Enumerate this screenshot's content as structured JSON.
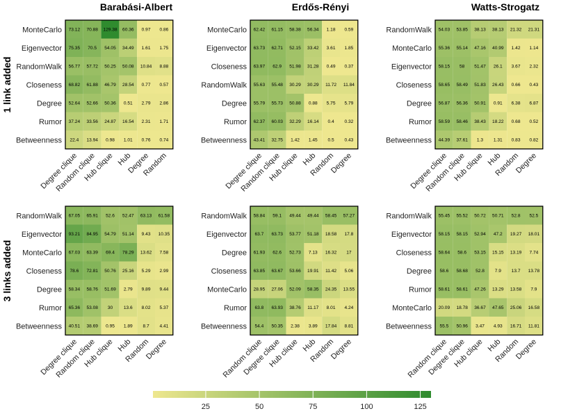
{
  "chart_data": {
    "type": "heatmap",
    "colorscale": {
      "low": "#eee78f",
      "high": "#2e8b2e",
      "min": 0.4,
      "max": 130
    },
    "colorbar": {
      "ticks": [
        25,
        50,
        75,
        100,
        125
      ],
      "range": [
        0.4,
        130
      ]
    },
    "row_strips": [
      "1 link added",
      "3 links added"
    ],
    "panels": [
      {
        "title": "Barabási-Albert",
        "strip": "1 link added",
        "rows": [
          "MonteCarlo",
          "Eigenvector",
          "RandomWalk",
          "Closeness",
          "Degree",
          "Rumor",
          "Betweenness"
        ],
        "cols": [
          "Degree clique",
          "Random clique",
          "Hub clique",
          "Hub",
          "Degree",
          "Random"
        ],
        "values": [
          [
            73.12,
            70.88,
            129.38,
            60.36,
            0.97,
            0.86
          ],
          [
            75.35,
            70.5,
            54.05,
            34.49,
            1.61,
            1.75
          ],
          [
            56.77,
            57.72,
            50.25,
            50.08,
            10.84,
            8.88
          ],
          [
            68.82,
            61.88,
            46.79,
            28.54,
            0.77,
            0.57
          ],
          [
            52.64,
            52.66,
            50.36,
            0.51,
            2.79,
            2.86
          ],
          [
            37.24,
            33.56,
            24.87,
            16.54,
            2.31,
            1.71
          ],
          [
            22.4,
            13.94,
            0.98,
            1.01,
            0.76,
            0.74
          ]
        ]
      },
      {
        "title": "Erdős-Rényi",
        "strip": "1 link added",
        "rows": [
          "MonteCarlo",
          "Eigenvector",
          "Closeness",
          "RandomWalk",
          "Degree",
          "Rumor",
          "Betweenness"
        ],
        "cols": [
          "Degree clique",
          "Random clique",
          "Hub clique",
          "Hub",
          "Random",
          "Degree"
        ],
        "values": [
          [
            62.42,
            61.15,
            58.38,
            56.34,
            1.18,
            0.59
          ],
          [
            63.73,
            62.71,
            52.15,
            33.42,
            3.61,
            1.85
          ],
          [
            63.97,
            62.9,
            51.98,
            31.28,
            0.49,
            0.37
          ],
          [
            55.63,
            55.48,
            30.29,
            30.29,
            11.72,
            11.84
          ],
          [
            55.79,
            55.73,
            50.88,
            0.88,
            5.75,
            5.79
          ],
          [
            62.37,
            60.03,
            32.29,
            16.14,
            0.4,
            0.32
          ],
          [
            43.41,
            32.75,
            1.42,
            1.45,
            0.5,
            0.43
          ]
        ]
      },
      {
        "title": "Watts-Strogatz",
        "strip": "1 link added",
        "rows": [
          "RandomWalk",
          "MonteCarlo",
          "Eigenvector",
          "Closeness",
          "Degree",
          "Rumor",
          "Betweenness"
        ],
        "cols": [
          "Degree clique",
          "Random clique",
          "Hub clique",
          "Hub",
          "Random",
          "Degree"
        ],
        "values": [
          [
            54.03,
            53.85,
            38.13,
            38.13,
            21.32,
            21.31
          ],
          [
            55.36,
            55.14,
            47.16,
            40.99,
            1.42,
            1.14
          ],
          [
            58.15,
            58,
            51.47,
            26.1,
            3.67,
            2.32
          ],
          [
            58.65,
            58.49,
            51.83,
            26.43,
            0.66,
            0.43
          ],
          [
            56.87,
            56.36,
            50.91,
            0.91,
            6.38,
            6.87
          ],
          [
            58.59,
            58.46,
            38.43,
            18.22,
            0.68,
            0.52
          ],
          [
            44.39,
            37.61,
            1.3,
            1.31,
            0.83,
            0.82
          ]
        ]
      },
      {
        "title": "",
        "strip": "3 links added",
        "rows": [
          "RandomWalk",
          "Eigenvector",
          "MonteCarlo",
          "Closeness",
          "Degree",
          "Rumor",
          "Betweenness"
        ],
        "cols": [
          "Degree clique",
          "Random clique",
          "Hub clique",
          "Hub",
          "Random",
          "Degree"
        ],
        "values": [
          [
            67.05,
            65.91,
            52.6,
            52.47,
            63.13,
            61.58
          ],
          [
            93.21,
            84.95,
            54.79,
            51.14,
            9.43,
            10.35
          ],
          [
            67.03,
            63.39,
            69.4,
            78.29,
            13.62,
            7.58
          ],
          [
            78.6,
            72.81,
            50.76,
            25.16,
            5.29,
            2.99
          ],
          [
            58.34,
            58.76,
            51.69,
            2.79,
            9.89,
            9.44
          ],
          [
            65.36,
            53.08,
            30,
            13.6,
            8.02,
            5.37
          ],
          [
            40.51,
            38.69,
            0.95,
            1.89,
            8.7,
            4.41
          ]
        ]
      },
      {
        "title": "",
        "strip": "3 links added",
        "rows": [
          "RandomWalk",
          "Eigenvector",
          "Degree",
          "Closeness",
          "MonteCarlo",
          "Rumor",
          "Betweenness"
        ],
        "cols": [
          "Random clique",
          "Degree clique",
          "Hub clique",
          "Hub",
          "Random",
          "Degree"
        ],
        "values": [
          [
            58.84,
            59.1,
            49.44,
            49.44,
            58.45,
            57.27
          ],
          [
            63.7,
            63.73,
            53.77,
            51.18,
            18.58,
            17.8
          ],
          [
            61.93,
            62.6,
            52.73,
            7.13,
            16.32,
            17
          ],
          [
            63.85,
            63.67,
            53.66,
            19.91,
            11.42,
            5.06
          ],
          [
            28.95,
            27.06,
            52.09,
            58.35,
            24.35,
            13.55
          ],
          [
            63.8,
            63.93,
            38.76,
            11.17,
            8.01,
            4.24
          ],
          [
            54.4,
            50.35,
            2.38,
            3.89,
            17.84,
            8.81
          ]
        ]
      },
      {
        "title": "",
        "strip": "3 links added",
        "rows": [
          "RandomWalk",
          "Eigenvector",
          "Closeness",
          "Degree",
          "Rumor",
          "MonteCarlo",
          "Betweenness"
        ],
        "cols": [
          "Random clique",
          "Degree clique",
          "Hub clique",
          "Hub",
          "Random",
          "Degree"
        ],
        "values": [
          [
            55.45,
            55.52,
            50.72,
            50.71,
            52.8,
            52.5
          ],
          [
            58.15,
            58.15,
            52.94,
            47.2,
            19.27,
            18.01
          ],
          [
            58.64,
            58.6,
            53.15,
            15.15,
            13.19,
            7.74
          ],
          [
            58.6,
            58.68,
            52.8,
            7.9,
            13.7,
            13.78
          ],
          [
            58.61,
            58.61,
            47.26,
            13.29,
            13.58,
            7.9
          ],
          [
            20.09,
            18.78,
            36.67,
            47.65,
            25.06,
            16.58
          ],
          [
            55.5,
            50.96,
            3.47,
            4.93,
            16.71,
            11.81
          ]
        ]
      }
    ]
  }
}
